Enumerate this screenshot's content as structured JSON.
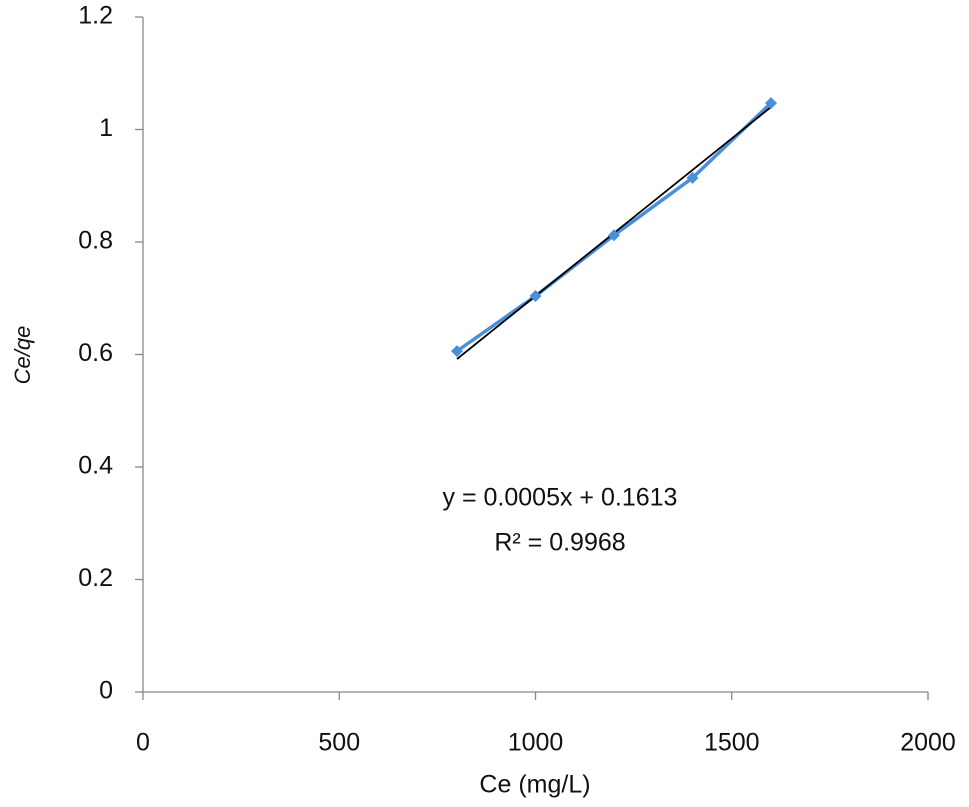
{
  "chart_data": {
    "type": "scatter",
    "x_label": "Ce (mg/L)",
    "y_label": "Ce/qe",
    "annotations": [
      "y = 0.0005x + 0.1613",
      "R² = 0.9968"
    ],
    "series": [
      {
        "x": [
          800,
          1000,
          1200,
          1400,
          1600
        ],
        "values": [
          0.606,
          0.704,
          0.812,
          0.914,
          1.047
        ],
        "color": "#4a8fdc"
      }
    ],
    "trendline": {
      "x": [
        800,
        1600
      ],
      "values": [
        0.592,
        1.04
      ],
      "color": "#000000"
    },
    "xlim": [
      0,
      2000
    ],
    "xticks": [
      0,
      500,
      1000,
      1500,
      2000
    ],
    "ylim": [
      0,
      1.2
    ],
    "yticks": [
      0,
      0.2,
      0.4,
      0.6,
      0.8,
      1,
      1.2
    ],
    "grid": false
  }
}
